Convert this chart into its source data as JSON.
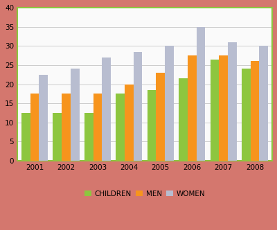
{
  "years": [
    2001,
    2002,
    2003,
    2004,
    2005,
    2006,
    2007,
    2008
  ],
  "children": [
    12.5,
    12.5,
    12.5,
    17.5,
    18.5,
    21.5,
    26.5,
    24.0
  ],
  "men": [
    17.5,
    17.5,
    17.5,
    20.0,
    23.0,
    27.5,
    27.5,
    26.0
  ],
  "women": [
    22.5,
    24.0,
    27.0,
    28.5,
    30.0,
    35.0,
    31.0,
    30.0
  ],
  "colors": {
    "children": "#8DC63F",
    "men": "#F7941D",
    "women": "#B8BDD0"
  },
  "ylim": [
    0,
    40
  ],
  "yticks": [
    0,
    5,
    10,
    15,
    20,
    25,
    30,
    35,
    40
  ],
  "outer_border_color": "#D4776E",
  "inner_border_color": "#8DC63F",
  "plot_bg_color": "#FAFAFA",
  "fig_bg_color": "#F5E8E0",
  "grid_color": "#CCCCCC",
  "bar_width": 0.28,
  "tick_fontsize": 7.5,
  "legend_fontsize": 7.5
}
